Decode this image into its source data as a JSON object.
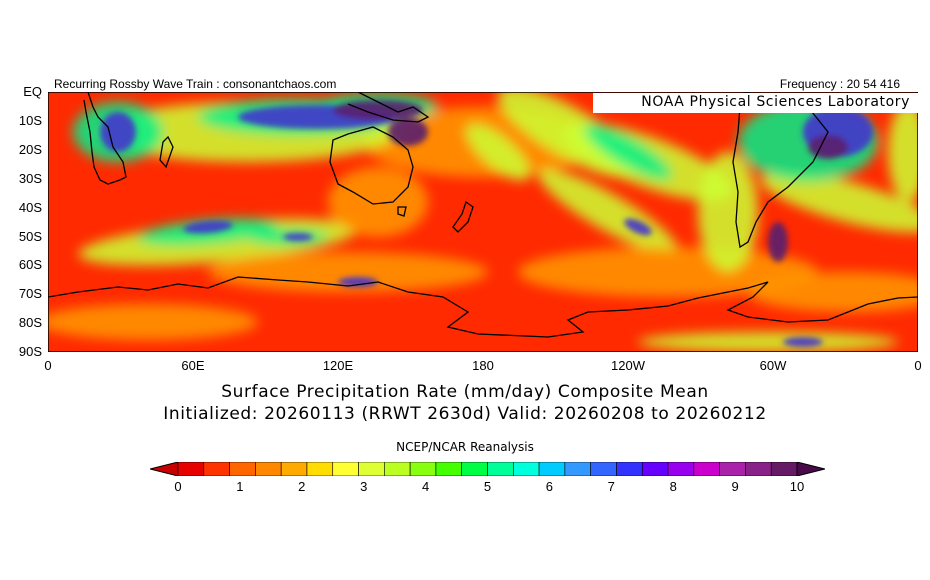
{
  "header": {
    "left_title": "Recurring Rossby Wave Train : consonantchaos.com",
    "right_title": "Frequency : 20 54 416"
  },
  "map": {
    "watermark": "NOAA Physical Sciences Laboratory",
    "lat_labels": [
      "EQ",
      "10S",
      "20S",
      "30S",
      "40S",
      "50S",
      "60S",
      "70S",
      "80S",
      "90S"
    ],
    "lon_labels": [
      "0",
      "60E",
      "120E",
      "180",
      "120W",
      "60W",
      "0"
    ],
    "region": "Southern Hemisphere, equator to 90S, 0 to 360",
    "colors": {
      "dry": "#ff1a00",
      "low": "#ff9900",
      "mid": "#ccff33",
      "wet": "#00ee88",
      "very_wet": "#4433cc",
      "extreme": "#5a1e6e"
    }
  },
  "captions": {
    "line1": "Surface Precipitation Rate (mm/day) Composite Mean",
    "line2": "Initialized: 20260113 (RRWT 2630d) Valid: 20260208 to 20260212",
    "line3": "NCEP/NCAR Reanalysis"
  },
  "colorbar": {
    "labels": [
      "0",
      "1",
      "2",
      "3",
      "4",
      "5",
      "6",
      "7",
      "8",
      "9",
      "10"
    ],
    "colors": [
      "#c80000",
      "#e60000",
      "#ff3300",
      "#ff6600",
      "#ff8800",
      "#ffaa00",
      "#ffdd00",
      "#ffff33",
      "#ddff33",
      "#bbff22",
      "#88ff11",
      "#44ff00",
      "#00ff44",
      "#00ff99",
      "#00ffdd",
      "#00ccff",
      "#3399ff",
      "#3366ff",
      "#3333ff",
      "#6600ff",
      "#9900ee",
      "#cc00cc",
      "#aa22aa",
      "#882288",
      "#661a66",
      "#4a0a4a"
    ]
  }
}
